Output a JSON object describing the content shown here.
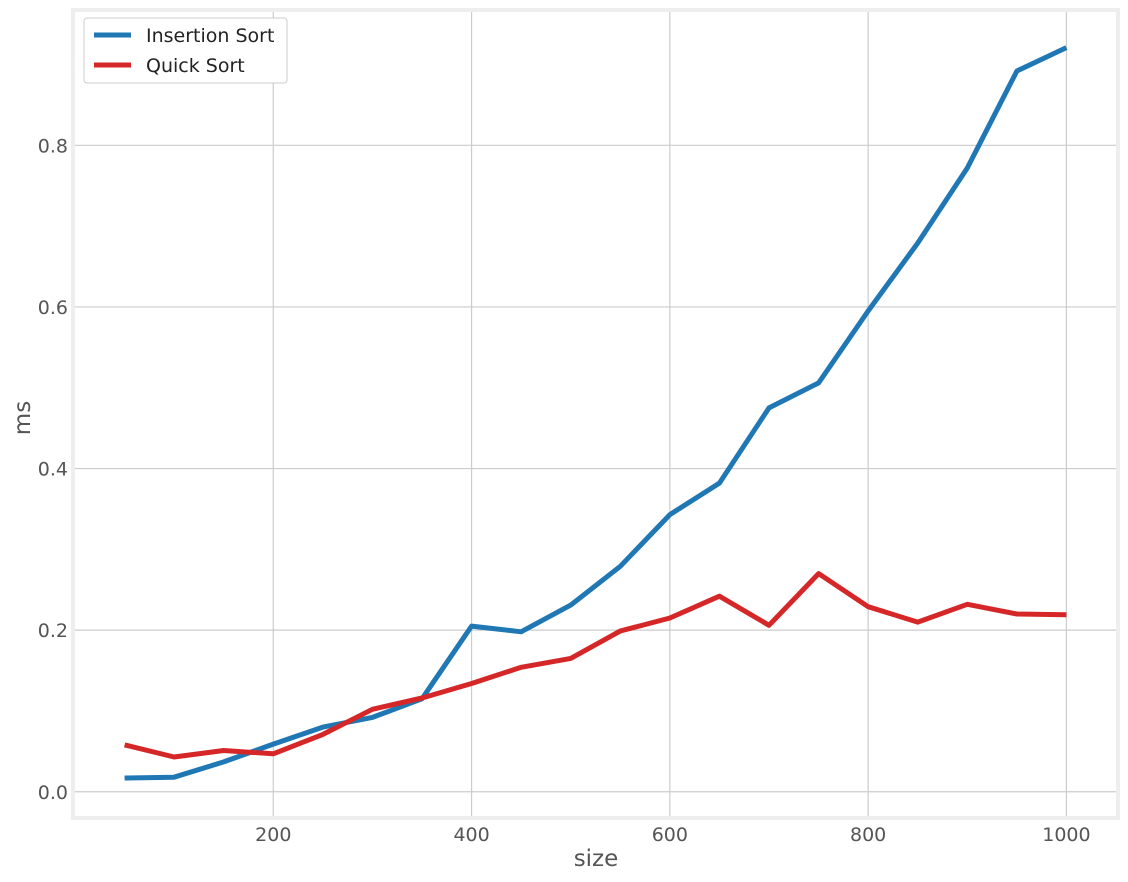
{
  "chart_data": {
    "type": "line",
    "title": "",
    "xlabel": "size",
    "ylabel": "ms",
    "xlim": [
      0,
      1050
    ],
    "ylim": [
      -0.03,
      0.965
    ],
    "xticks": [
      200,
      400,
      600,
      800,
      1000
    ],
    "yticks": [
      0.0,
      0.2,
      0.4,
      0.6,
      0.8
    ],
    "xtick_labels": [
      "200",
      "400",
      "600",
      "800",
      "1000"
    ],
    "ytick_labels": [
      "0.0",
      "0.2",
      "0.4",
      "0.6",
      "0.8"
    ],
    "grid": true,
    "legend_position": "top-left",
    "x": [
      50,
      100,
      150,
      200,
      250,
      300,
      350,
      400,
      450,
      500,
      550,
      600,
      650,
      700,
      750,
      800,
      850,
      900,
      950,
      1000
    ],
    "series": [
      {
        "name": "Insertion Sort",
        "color": "#1f77b4",
        "values": [
          0.017,
          0.018,
          0.037,
          0.059,
          0.08,
          0.092,
          0.115,
          0.205,
          0.198,
          0.231,
          0.279,
          0.343,
          0.382,
          0.475,
          0.506,
          0.595,
          0.679,
          0.772,
          0.892,
          0.921
        ]
      },
      {
        "name": "Quick Sort",
        "color": "#d62728",
        "values": [
          0.058,
          0.043,
          0.051,
          0.047,
          0.071,
          0.102,
          0.116,
          0.134,
          0.154,
          0.165,
          0.199,
          0.215,
          0.242,
          0.206,
          0.27,
          0.229,
          0.21,
          0.232,
          0.22,
          0.219
        ]
      }
    ]
  }
}
